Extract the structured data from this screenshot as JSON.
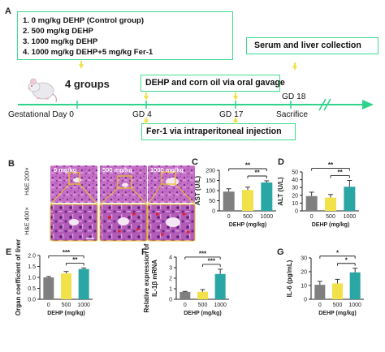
{
  "panel_a": {
    "letter": "A",
    "groups_lines": [
      "1. 0 mg/kg DEHP (Control group)",
      "2. 500 mg/kg DEHP",
      "3. 1000 mg/kg DEHP",
      "4. 1000 mg/kg DEHP+5 mg/kg Fer-1"
    ],
    "four_groups": "4 groups",
    "serum_box": "Serum and liver collection",
    "gavage_box": "DEHP and corn oil via oral gavage",
    "fer1_box": "Fer-1 via intraperitoneal injection",
    "timeline": {
      "start": "Gestational Day 0",
      "gd4": "GD 4",
      "gd17": "GD 17",
      "gd18": "GD 18",
      "sacrifice": "Sacrifice"
    },
    "colors": {
      "box_border": "#3ddc8c",
      "timeline": "#2fd38a",
      "arrow_yellow": "#f2e24a"
    },
    "icon": "mouse-icon"
  },
  "panel_b": {
    "letter": "B",
    "col_labels": [
      "0 mg/kg",
      "500 mg/kg",
      "1000 mg/kg"
    ],
    "row_labels": [
      "H&E 200×",
      "H&E 400×"
    ],
    "colors": {
      "tissue": "#c06fc0",
      "zoom_box": "#e8c12a",
      "marker": "#e02020"
    }
  },
  "charts": {
    "C": {
      "letter": "C",
      "chart_data": {
        "type": "bar",
        "categories": [
          "0",
          "500",
          "1000"
        ],
        "values": [
          95,
          103,
          140
        ],
        "errors": [
          14,
          14,
          8
        ],
        "ylabel": "AST (U/L)",
        "xlabel": "DEHP (mg/kg)",
        "ylim": [
          0,
          200
        ],
        "yticks": [
          "0",
          "50",
          "100",
          "150",
          "200"
        ],
        "significance": [
          {
            "from": 0,
            "to": 2,
            "label": "**"
          },
          {
            "from": 1,
            "to": 2,
            "label": "**"
          }
        ]
      }
    },
    "D": {
      "letter": "D",
      "chart_data": {
        "type": "bar",
        "categories": [
          "0",
          "500",
          "1000"
        ],
        "values": [
          19,
          17,
          31
        ],
        "errors": [
          5,
          4,
          8
        ],
        "ylabel": "ALT (U/L)",
        "xlabel": "DEHP (mg/kg)",
        "ylim": [
          0,
          50
        ],
        "yticks": [
          "0",
          "10",
          "20",
          "30",
          "40",
          "50"
        ],
        "significance": [
          {
            "from": 0,
            "to": 2,
            "label": "**"
          },
          {
            "from": 1,
            "to": 2,
            "label": "**"
          }
        ]
      }
    },
    "E": {
      "letter": "E",
      "chart_data": {
        "type": "bar",
        "categories": [
          "0",
          "500",
          "1000"
        ],
        "values": [
          1.0,
          1.18,
          1.38
        ],
        "errors": [
          0.04,
          0.09,
          0.05
        ],
        "ylabel": "Organ coefficient of liver",
        "xlabel": "DEHP (mg/kg)",
        "ylim": [
          0,
          2.0
        ],
        "yticks": [
          "0.0",
          "0.5",
          "1.0",
          "1.5",
          "2.0"
        ],
        "significance": [
          {
            "from": 0,
            "to": 2,
            "label": "***"
          },
          {
            "from": 1,
            "to": 2,
            "label": "**"
          }
        ]
      }
    },
    "F": {
      "letter": "F",
      "chart_data": {
        "type": "bar",
        "categories": [
          "0",
          "500",
          "1000"
        ],
        "values": [
          0.7,
          0.72,
          2.4
        ],
        "errors": [
          0.05,
          0.2,
          0.45
        ],
        "ylabel": "Relative expression of IL-1β mRNA",
        "ylabel_lines": [
          "Relative expression of",
          "IL-1β mRNA"
        ],
        "xlabel": "DEHP (mg/kg)",
        "ylim": [
          0,
          4
        ],
        "yticks": [
          "0",
          "1",
          "2",
          "3",
          "4"
        ],
        "significance": [
          {
            "from": 0,
            "to": 2,
            "label": "***"
          },
          {
            "from": 1,
            "to": 2,
            "label": "***"
          }
        ]
      }
    },
    "G": {
      "letter": "G",
      "chart_data": {
        "type": "bar",
        "categories": [
          "0",
          "500",
          "1000"
        ],
        "values": [
          10.5,
          11.5,
          19.5
        ],
        "errors": [
          2.5,
          3,
          3
        ],
        "ylabel": "IL-6 (pg/mL)",
        "xlabel": "DEHP (mg/kg)",
        "ylim": [
          0,
          30
        ],
        "yticks": [
          "0",
          "10",
          "20",
          "30"
        ],
        "significance": [
          {
            "from": 0,
            "to": 2,
            "label": "*"
          },
          {
            "from": 1,
            "to": 2,
            "label": "*"
          }
        ]
      }
    }
  },
  "bar_colors": [
    "#7f7f7f",
    "#f2e24a",
    "#2aa6a4"
  ]
}
